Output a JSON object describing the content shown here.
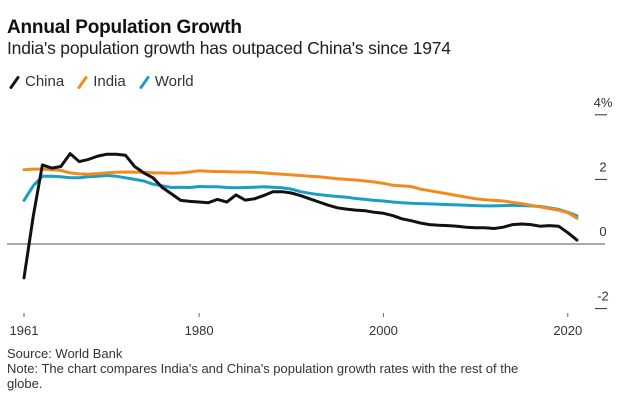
{
  "chart_data": {
    "type": "line",
    "title": "Annual Population Growth",
    "subtitle": "India's population growth has outpaced China's since 1974",
    "xlabel": "",
    "ylabel": "",
    "xlim": [
      1961,
      2021
    ],
    "ylim": [
      -2,
      4
    ],
    "x_ticks": [
      {
        "value": 1961,
        "label": "1961"
      },
      {
        "value": 1980,
        "label": "1980"
      },
      {
        "value": 2000,
        "label": "2000"
      },
      {
        "value": 2020,
        "label": "2020"
      }
    ],
    "y_ticks": [
      {
        "value": 4,
        "label": "4%"
      },
      {
        "value": 2,
        "label": "2"
      },
      {
        "value": 0,
        "label": "0"
      },
      {
        "value": -2,
        "label": "-2"
      }
    ],
    "grid": false,
    "legend_position": "top-left",
    "x": [
      1961,
      1962,
      1963,
      1964,
      1965,
      1966,
      1967,
      1968,
      1969,
      1970,
      1971,
      1972,
      1973,
      1974,
      1975,
      1976,
      1977,
      1978,
      1979,
      1980,
      1981,
      1982,
      1983,
      1984,
      1985,
      1986,
      1987,
      1988,
      1989,
      1990,
      1991,
      1992,
      1993,
      1994,
      1995,
      1996,
      1997,
      1998,
      1999,
      2000,
      2001,
      2002,
      2003,
      2004,
      2005,
      2006,
      2007,
      2008,
      2009,
      2010,
      2011,
      2012,
      2013,
      2014,
      2015,
      2016,
      2017,
      2018,
      2019,
      2020,
      2021
    ],
    "series": [
      {
        "name": "China",
        "color": "#111111",
        "values": [
          -1.05,
          0.85,
          2.45,
          2.35,
          2.4,
          2.8,
          2.55,
          2.62,
          2.72,
          2.78,
          2.78,
          2.75,
          2.4,
          2.2,
          2.05,
          1.75,
          1.55,
          1.35,
          1.32,
          1.3,
          1.28,
          1.38,
          1.3,
          1.52,
          1.36,
          1.4,
          1.5,
          1.62,
          1.62,
          1.58,
          1.5,
          1.4,
          1.3,
          1.2,
          1.12,
          1.08,
          1.05,
          1.03,
          0.98,
          0.95,
          0.88,
          0.78,
          0.72,
          0.65,
          0.6,
          0.58,
          0.57,
          0.55,
          0.52,
          0.5,
          0.5,
          0.48,
          0.52,
          0.6,
          0.62,
          0.6,
          0.55,
          0.57,
          0.55,
          0.35,
          0.12
        ]
      },
      {
        "name": "India",
        "color": "#f08c1e",
        "values": [
          2.3,
          2.32,
          2.32,
          2.3,
          2.28,
          2.2,
          2.17,
          2.16,
          2.18,
          2.2,
          2.22,
          2.23,
          2.22,
          2.22,
          2.2,
          2.2,
          2.19,
          2.2,
          2.23,
          2.27,
          2.25,
          2.24,
          2.24,
          2.23,
          2.23,
          2.22,
          2.2,
          2.18,
          2.16,
          2.14,
          2.12,
          2.1,
          2.08,
          2.05,
          2.02,
          2.0,
          1.98,
          1.95,
          1.92,
          1.88,
          1.82,
          1.8,
          1.78,
          1.7,
          1.65,
          1.6,
          1.55,
          1.5,
          1.45,
          1.4,
          1.37,
          1.35,
          1.33,
          1.29,
          1.25,
          1.2,
          1.15,
          1.1,
          1.05,
          0.97,
          0.8
        ]
      },
      {
        "name": "World",
        "color": "#1a9fc4",
        "values": [
          1.35,
          1.8,
          2.1,
          2.1,
          2.08,
          2.05,
          2.05,
          2.08,
          2.1,
          2.12,
          2.1,
          2.05,
          2.0,
          1.95,
          1.85,
          1.8,
          1.75,
          1.76,
          1.75,
          1.78,
          1.77,
          1.77,
          1.75,
          1.74,
          1.75,
          1.76,
          1.77,
          1.76,
          1.74,
          1.7,
          1.62,
          1.57,
          1.53,
          1.5,
          1.47,
          1.45,
          1.41,
          1.38,
          1.35,
          1.33,
          1.3,
          1.28,
          1.26,
          1.25,
          1.24,
          1.23,
          1.22,
          1.21,
          1.2,
          1.19,
          1.18,
          1.18,
          1.19,
          1.2,
          1.19,
          1.18,
          1.16,
          1.12,
          1.07,
          0.98,
          0.87
        ]
      }
    ],
    "source": "Source: World Bank",
    "note": "Note: The chart compares India's and China's population growth rates with the rest of the globe."
  },
  "legend": [
    {
      "label": "China",
      "color": "#111111"
    },
    {
      "label": "India",
      "color": "#f08c1e"
    },
    {
      "label": "World",
      "color": "#1a9fc4"
    }
  ]
}
